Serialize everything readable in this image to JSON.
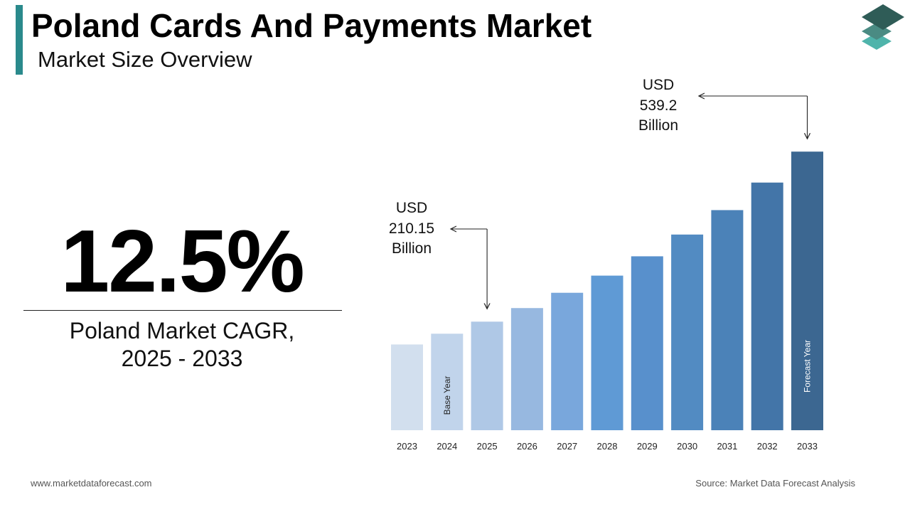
{
  "header": {
    "title": "Poland Cards And Payments Market",
    "subtitle": "Market Size Overview"
  },
  "colors": {
    "accent": "#2a8a8c",
    "logo_top": "#2f5c57",
    "logo_mid": "#4a8b83",
    "logo_bottom": "#4fb4ab"
  },
  "logo": {
    "icon": "stacked-layers-icon"
  },
  "cagr": {
    "value": "12.5%",
    "label_line1": "Poland Market CAGR,",
    "label_line2": "2025 - 2033"
  },
  "chart_data": {
    "type": "bar",
    "title": "",
    "xlabel": "",
    "ylabel": "",
    "categories": [
      "2023",
      "2024",
      "2025",
      "2026",
      "2027",
      "2028",
      "2029",
      "2030",
      "2031",
      "2032",
      "2033"
    ],
    "series": [
      {
        "values": [
          166.0,
          186.8,
          210.15,
          236.4,
          266.0,
          299.2,
          336.6,
          378.7,
          426.0,
          479.3,
          539.2
        ],
        "colors": [
          "#d2dfee",
          "#c1d4eb",
          "#afc8e6",
          "#97b8e0",
          "#79a7dc",
          "#5f9ad5",
          "#5890cc",
          "#528bc2",
          "#4b82b8",
          "#4375a8",
          "#3c6791"
        ]
      }
    ],
    "ylim": [
      0,
      545
    ],
    "grid": false,
    "legend": "none",
    "bar_labels": [
      {
        "category": "2024",
        "text": "Base Year"
      },
      {
        "category": "2033",
        "text": "Forecast Year"
      }
    ],
    "annotations": [
      {
        "category": "2025",
        "prefix": "USD",
        "value": "210.15",
        "unit": "Billion"
      },
      {
        "category": "2033",
        "prefix": "USD",
        "value": "539.2",
        "unit": "Billion"
      }
    ]
  },
  "footer": {
    "website": "www.marketdataforecast.com",
    "source": "Source: Market Data Forecast Analysis"
  }
}
